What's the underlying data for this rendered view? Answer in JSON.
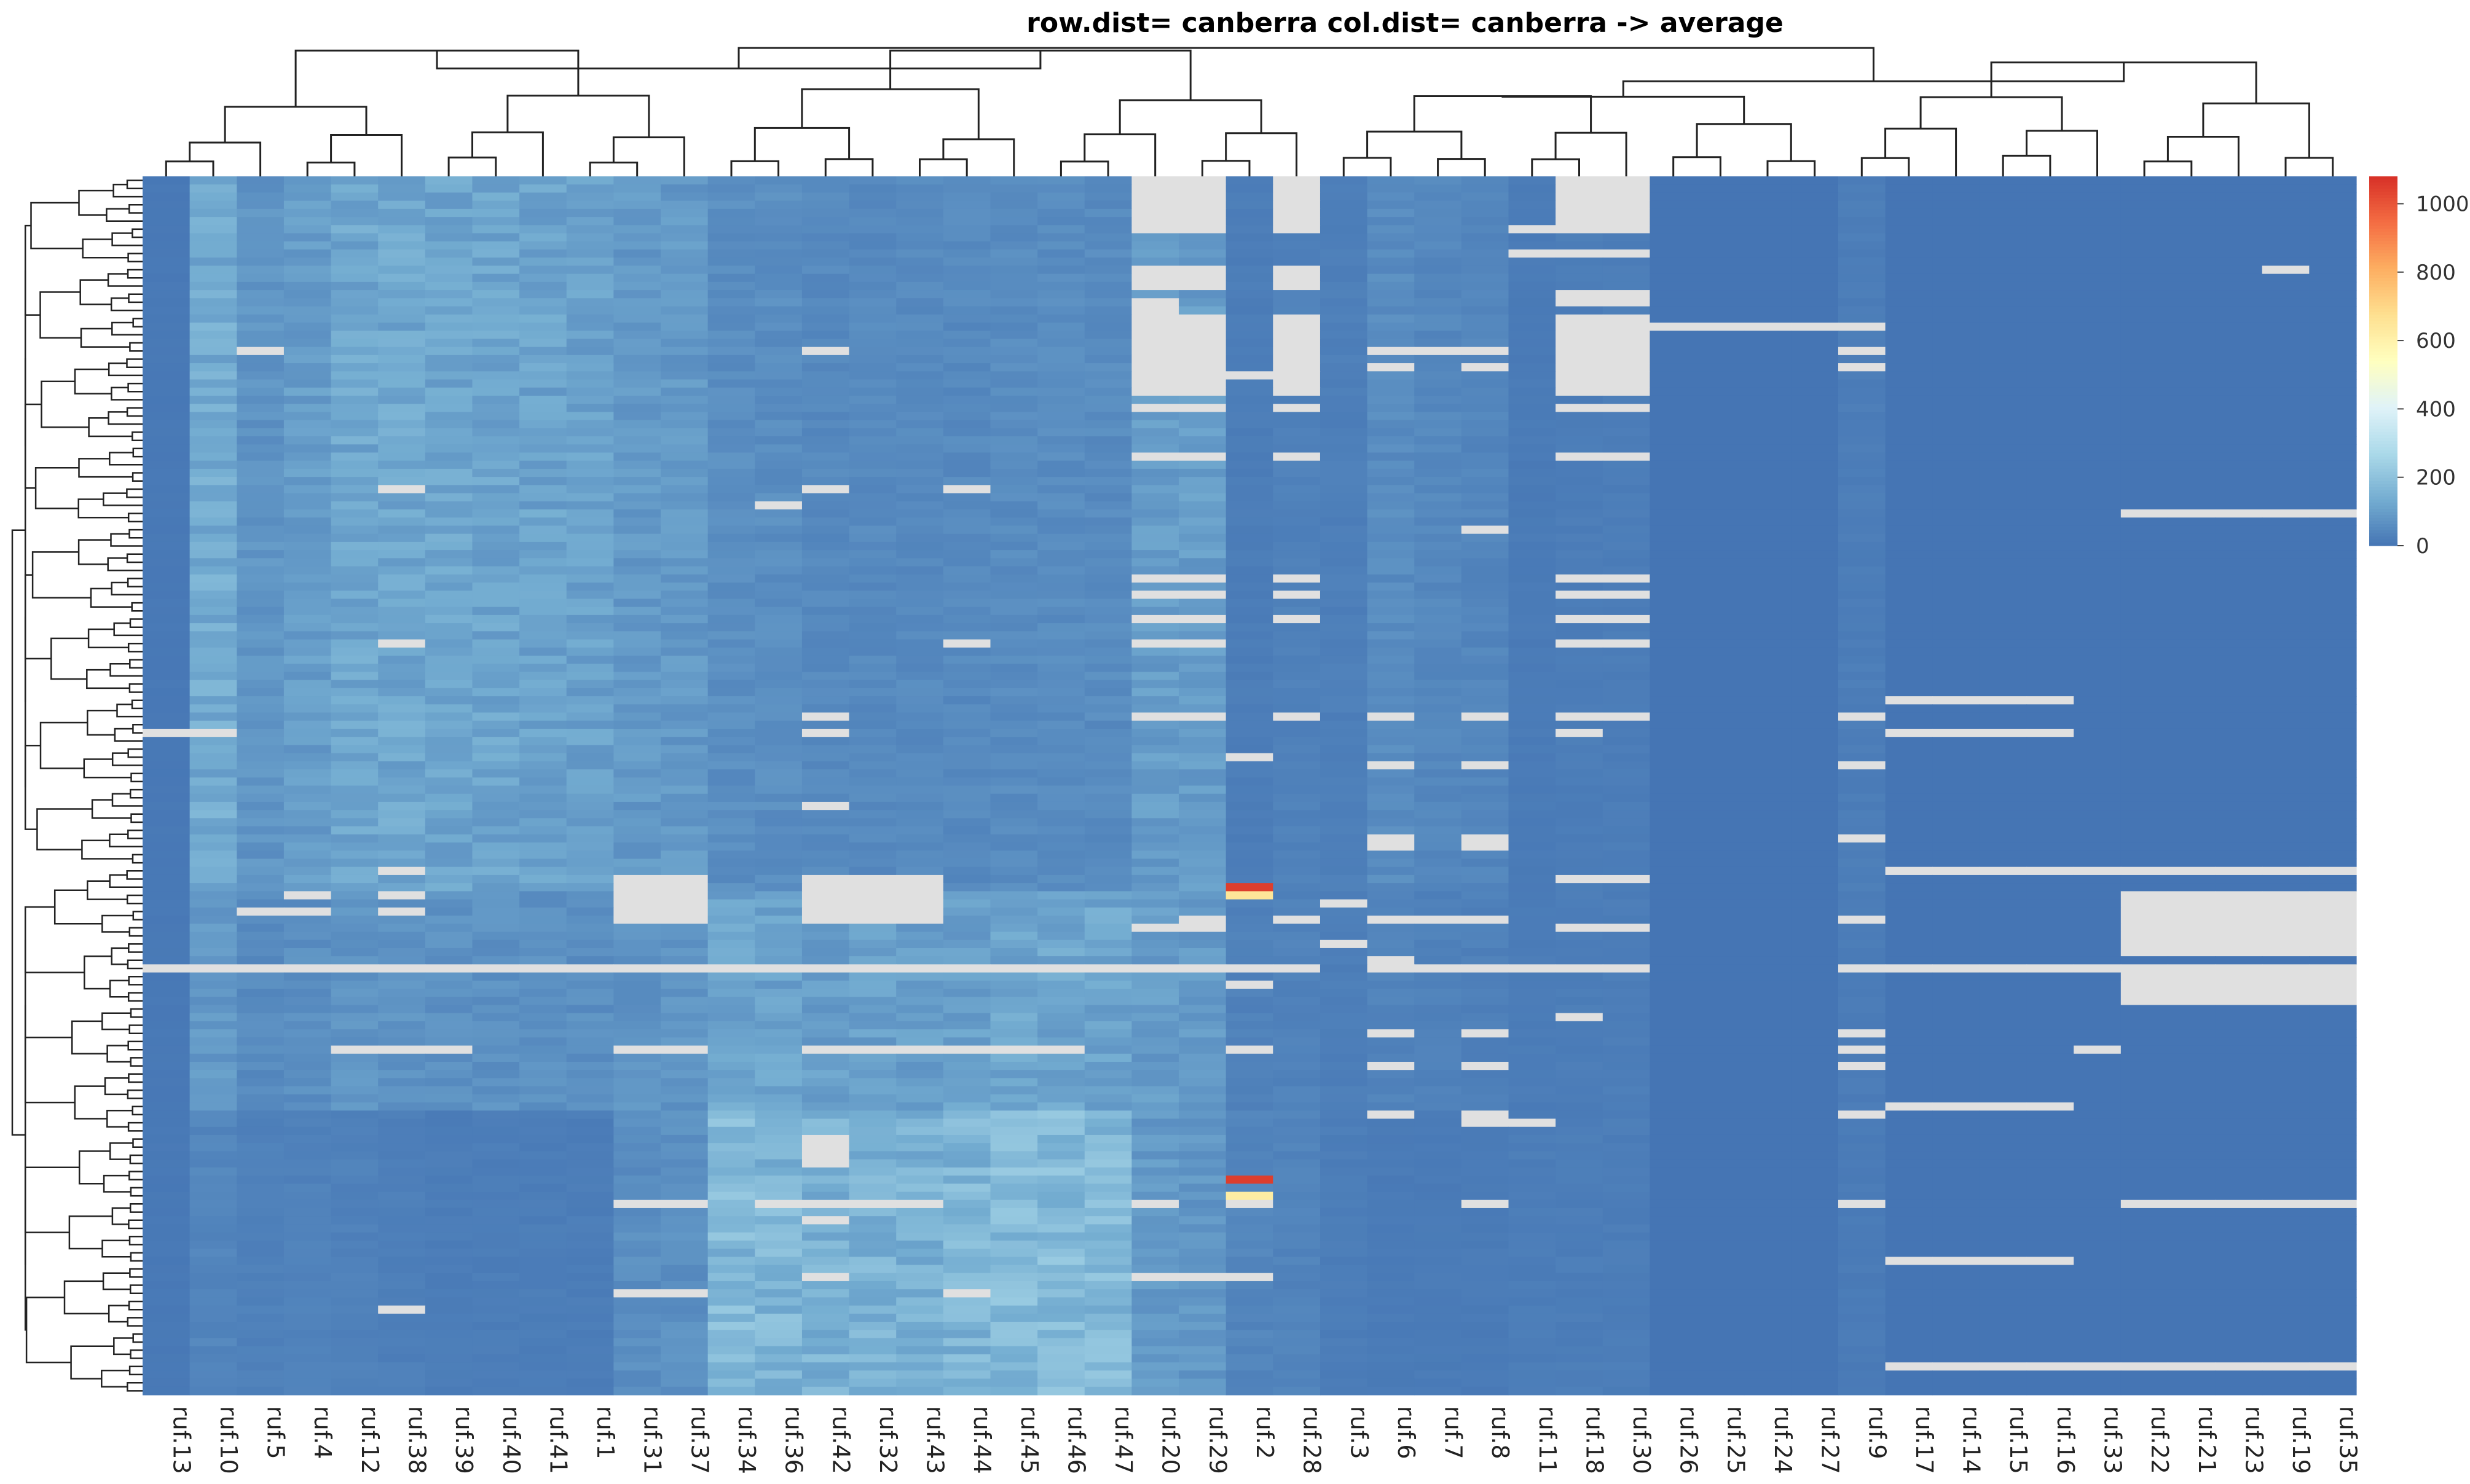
{
  "chart_data": {
    "type": "heatmap",
    "title": "row.dist= canberra col.dist= canberra -> average",
    "columns": [
      "ruf.13",
      "ruf.10",
      "ruf.5",
      "ruf.4",
      "ruf.12",
      "ruf.38",
      "ruf.39",
      "ruf.40",
      "ruf.41",
      "ruf.1",
      "ruf.31",
      "ruf.37",
      "ruf.34",
      "ruf.36",
      "ruf.42",
      "ruf.32",
      "ruf.43",
      "ruf.44",
      "ruf.45",
      "ruf.46",
      "ruf.47",
      "ruf.20",
      "ruf.29",
      "ruf.2",
      "ruf.28",
      "ruf.3",
      "ruf.6",
      "ruf.7",
      "ruf.8",
      "ruf.11",
      "ruf.18",
      "ruf.30",
      "ruf.26",
      "ruf.25",
      "ruf.24",
      "ruf.27",
      "ruf.9",
      "ruf.17",
      "ruf.14",
      "ruf.15",
      "ruf.16",
      "ruf.33",
      "ruf.22",
      "ruf.21",
      "ruf.23",
      "ruf.19",
      "ruf.35"
    ],
    "row_count": 150,
    "colorbar": {
      "ticks": [
        0,
        200,
        400,
        600,
        800,
        1000
      ],
      "range": [
        0,
        1080
      ],
      "colors": [
        "#4575b4",
        "#74add1",
        "#abd9e9",
        "#e0f3f8",
        "#ffffbf",
        "#fee090",
        "#fdae61",
        "#f46d43",
        "#d73027"
      ]
    },
    "missing_color": "#e0e0e0",
    "column_base_values": [
      10,
      130,
      75,
      95,
      120,
      120,
      115,
      115,
      110,
      105,
      85,
      85,
      60,
      60,
      50,
      50,
      50,
      50,
      55,
      55,
      55,
      95,
      95,
      20,
      30,
      25,
      55,
      45,
      40,
      15,
      20,
      20,
      0,
      0,
      0,
      0,
      20,
      0,
      0,
      0,
      0,
      0,
      0,
      0,
      0,
      0,
      0
    ],
    "lower_block_values": [
      10,
      40,
      30,
      30,
      30,
      25,
      20,
      20,
      20,
      20,
      60,
      65,
      170,
      160,
      150,
      150,
      150,
      160,
      175,
      175,
      175,
      90,
      80,
      40,
      35,
      20,
      15,
      15,
      15,
      20,
      20,
      20,
      0,
      0,
      0,
      0,
      15,
      0,
      0,
      0,
      0,
      0,
      0,
      0,
      0,
      0,
      0
    ],
    "missing_blocks": [
      {
        "col": 21,
        "from": 0,
        "to": 5
      },
      {
        "col": 22,
        "from": 0,
        "to": 5
      },
      {
        "col": 24,
        "from": 0,
        "to": 5
      },
      {
        "col": 30,
        "from": 0,
        "to": 5
      },
      {
        "col": 31,
        "from": 0,
        "to": 5
      },
      {
        "col": 21,
        "from": 11,
        "to": 13
      },
      {
        "col": 22,
        "from": 11,
        "to": 13
      },
      {
        "col": 24,
        "from": 11,
        "to": 13
      },
      {
        "col": 30,
        "from": 14,
        "to": 15
      },
      {
        "col": 31,
        "from": 14,
        "to": 15
      },
      {
        "col": 21,
        "from": 15,
        "to": 26
      },
      {
        "col": 22,
        "from": 17,
        "to": 26
      },
      {
        "col": 24,
        "from": 17,
        "to": 26
      },
      {
        "col": 30,
        "from": 17,
        "to": 26
      },
      {
        "col": 31,
        "from": 17,
        "to": 26
      },
      {
        "col": 10,
        "from": 86,
        "to": 91
      },
      {
        "col": 11,
        "from": 86,
        "to": 91
      },
      {
        "col": 14,
        "from": 86,
        "to": 91
      },
      {
        "col": 15,
        "from": 86,
        "to": 91
      },
      {
        "col": 16,
        "from": 86,
        "to": 91
      },
      {
        "col": 42,
        "from": 88,
        "to": 95
      },
      {
        "col": 43,
        "from": 88,
        "to": 95
      },
      {
        "col": 44,
        "from": 88,
        "to": 95
      },
      {
        "col": 45,
        "from": 88,
        "to": 95
      },
      {
        "col": 46,
        "from": 88,
        "to": 95
      },
      {
        "col": 42,
        "from": 97,
        "to": 101
      },
      {
        "col": 43,
        "from": 97,
        "to": 101
      },
      {
        "col": 44,
        "from": 97,
        "to": 101
      },
      {
        "col": 45,
        "from": 97,
        "to": 101
      },
      {
        "col": 46,
        "from": 97,
        "to": 101
      },
      {
        "col": 14,
        "from": 118,
        "to": 121
      }
    ],
    "missing_rows": [
      {
        "row": 6,
        "cols": [
          21,
          22,
          24,
          29,
          30,
          31
        ]
      },
      {
        "row": 9,
        "cols": [
          29,
          30,
          31
        ]
      },
      {
        "row": 11,
        "cols": [
          45
        ]
      },
      {
        "row": 18,
        "cols": [
          32,
          33,
          34,
          35,
          36
        ]
      },
      {
        "row": 21,
        "cols": [
          2,
          14,
          26,
          27,
          28,
          36
        ]
      },
      {
        "row": 23,
        "cols": [
          26,
          28,
          36
        ]
      },
      {
        "row": 24,
        "cols": [
          23
        ]
      },
      {
        "row": 28,
        "cols": [
          21,
          22,
          24,
          30,
          31
        ]
      },
      {
        "row": 34,
        "cols": [
          21,
          22,
          24,
          30,
          31
        ]
      },
      {
        "row": 38,
        "cols": [
          5,
          14,
          17
        ]
      },
      {
        "row": 40,
        "cols": [
          13
        ]
      },
      {
        "row": 41,
        "cols": [
          42,
          43,
          44,
          45,
          46
        ]
      },
      {
        "row": 43,
        "cols": [
          28
        ]
      },
      {
        "row": 49,
        "cols": [
          21,
          22,
          24,
          30,
          31
        ]
      },
      {
        "row": 51,
        "cols": [
          21,
          22,
          24,
          30,
          31
        ]
      },
      {
        "row": 54,
        "cols": [
          21,
          22,
          24,
          30,
          31
        ]
      },
      {
        "row": 57,
        "cols": [
          5,
          17,
          21,
          22,
          30,
          31
        ]
      },
      {
        "row": 64,
        "cols": [
          37,
          38,
          39,
          40
        ]
      },
      {
        "row": 66,
        "cols": [
          14,
          21,
          22,
          24,
          26,
          28,
          30,
          31,
          36
        ]
      },
      {
        "row": 68,
        "cols": [
          0,
          1,
          14,
          30,
          37,
          38,
          39,
          40
        ]
      },
      {
        "row": 71,
        "cols": [
          23
        ]
      },
      {
        "row": 72,
        "cols": [
          26,
          28,
          36
        ]
      },
      {
        "row": 77,
        "cols": [
          14
        ]
      },
      {
        "row": 81,
        "cols": [
          26,
          28,
          36
        ]
      },
      {
        "row": 82,
        "cols": [
          26,
          28
        ]
      },
      {
        "row": 85,
        "cols": [
          5,
          37,
          38,
          39,
          40,
          41,
          42,
          43,
          44,
          45,
          46
        ]
      },
      {
        "row": 86,
        "cols": [
          30,
          31
        ]
      },
      {
        "row": 88,
        "cols": [
          3,
          5
        ]
      },
      {
        "row": 89,
        "cols": [
          25
        ]
      },
      {
        "row": 90,
        "cols": [
          2,
          3,
          5
        ]
      },
      {
        "row": 91,
        "cols": [
          26,
          27,
          28,
          36,
          22,
          24
        ]
      },
      {
        "row": 92,
        "cols": [
          21,
          22,
          30,
          31
        ]
      },
      {
        "row": 94,
        "cols": [
          25
        ]
      },
      {
        "row": 96,
        "cols": [
          26
        ]
      },
      {
        "row": 97,
        "cols": [
          0,
          1,
          2,
          3,
          4,
          5,
          6,
          7,
          8,
          9,
          10,
          11,
          12,
          13,
          14,
          15,
          16,
          17,
          18,
          19,
          20,
          21,
          22,
          23,
          24,
          26,
          27,
          28,
          29,
          30,
          31,
          36,
          37,
          38,
          39,
          40,
          41
        ]
      },
      {
        "row": 99,
        "cols": [
          23
        ]
      },
      {
        "row": 103,
        "cols": [
          30
        ]
      },
      {
        "row": 105,
        "cols": [
          26,
          28,
          36
        ]
      },
      {
        "row": 107,
        "cols": [
          4,
          5,
          6,
          10,
          11,
          14,
          15,
          16,
          17,
          18,
          19,
          23,
          36,
          41
        ]
      },
      {
        "row": 109,
        "cols": [
          26,
          28,
          36
        ]
      },
      {
        "row": 114,
        "cols": [
          37,
          38,
          39,
          40
        ]
      },
      {
        "row": 115,
        "cols": [
          26,
          28,
          36
        ]
      },
      {
        "row": 116,
        "cols": [
          28,
          29
        ]
      },
      {
        "row": 126,
        "cols": [
          10,
          11,
          13,
          14,
          15,
          16,
          21,
          23,
          28,
          36,
          42,
          43,
          44,
          45,
          46
        ]
      },
      {
        "row": 128,
        "cols": [
          14
        ]
      },
      {
        "row": 133,
        "cols": [
          37,
          38,
          39,
          40
        ]
      },
      {
        "row": 135,
        "cols": [
          14,
          21,
          22,
          23
        ]
      },
      {
        "row": 137,
        "cols": [
          10,
          11,
          17
        ]
      },
      {
        "row": 139,
        "cols": [
          5
        ]
      },
      {
        "row": 146,
        "cols": [
          37,
          38,
          39,
          40,
          41,
          42,
          43,
          44,
          45,
          46
        ]
      }
    ],
    "high_cells": [
      {
        "row": 87,
        "col": 23,
        "value": 1050
      },
      {
        "row": 88,
        "col": 23,
        "value": 650
      },
      {
        "row": 123,
        "col": 23,
        "value": 1050
      },
      {
        "row": 125,
        "col": 23,
        "value": 620
      }
    ]
  }
}
